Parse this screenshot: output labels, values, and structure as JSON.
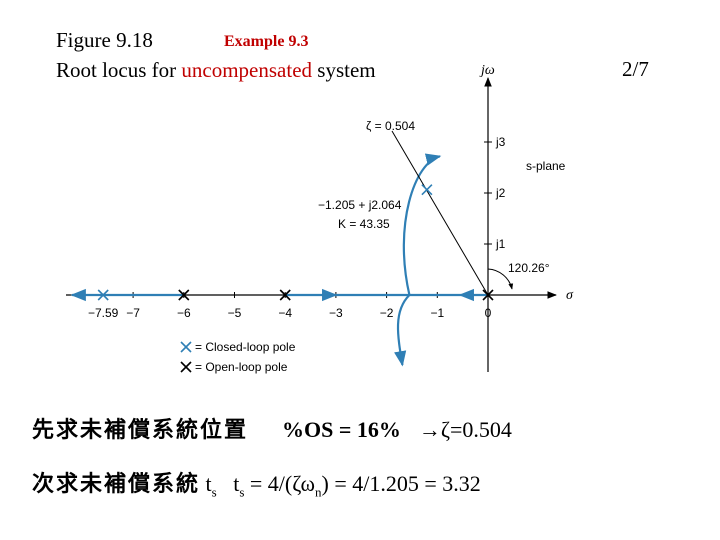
{
  "header": {
    "figure_label": "Figure 9.18",
    "example_label": "Example 9.3",
    "caption_prefix": "Root locus for ",
    "caption_highlight": "uncompensated",
    "caption_suffix": " system",
    "page_number": "2/7"
  },
  "diagram": {
    "plane_label": "s-plane",
    "imag_axis_label": "jω",
    "real_axis_label": "σ",
    "real_ticks": [
      {
        "value": -7,
        "label": "−7"
      },
      {
        "value": -6,
        "label": "−6"
      },
      {
        "value": -5,
        "label": "−5"
      },
      {
        "value": -4,
        "label": "−4"
      },
      {
        "value": -3,
        "label": "−3"
      },
      {
        "value": -2,
        "label": "−2"
      },
      {
        "value": -1,
        "label": "−1"
      },
      {
        "value": 0,
        "label": "0"
      }
    ],
    "imag_ticks": [
      {
        "value": 1,
        "label": "j1"
      },
      {
        "value": 2,
        "label": "j2"
      },
      {
        "value": 3,
        "label": "j3"
      }
    ],
    "open_loop_poles": [
      0,
      -4,
      -6
    ],
    "closed_loop_poles": [
      {
        "re": -7.59,
        "im": 0
      },
      {
        "re": -1.205,
        "im": 2.064
      }
    ],
    "closed_loop_real_label": "−7.59",
    "damping_line_label": "ζ = 0.504",
    "damping_angle_label": "120.26°",
    "point_label_1": "−1.205 + j2.064",
    "point_label_2": "K = 43.35",
    "legend_closed": "= Closed-loop pole",
    "legend_open": "= Open-loop pole",
    "colors": {
      "locus": "#2f7fb5",
      "axis": "#000000",
      "caption_highlight": "#c00000"
    }
  },
  "body": {
    "line1_cjk": "先求未補償系統位置",
    "line1_os": "%OS = 16%",
    "line1_zeta": "→ζ=0.504",
    "line2_cjk": "次求未補償系統",
    "line2_ts_label": "t",
    "line2_ts_sub": "s",
    "line2_formula_a": "t",
    "line2_formula_sub1": "s",
    "line2_formula_b": " = 4/(ζω",
    "line2_formula_sub2": "n",
    "line2_formula_c": ") = 4/1.205 = 3.32"
  }
}
